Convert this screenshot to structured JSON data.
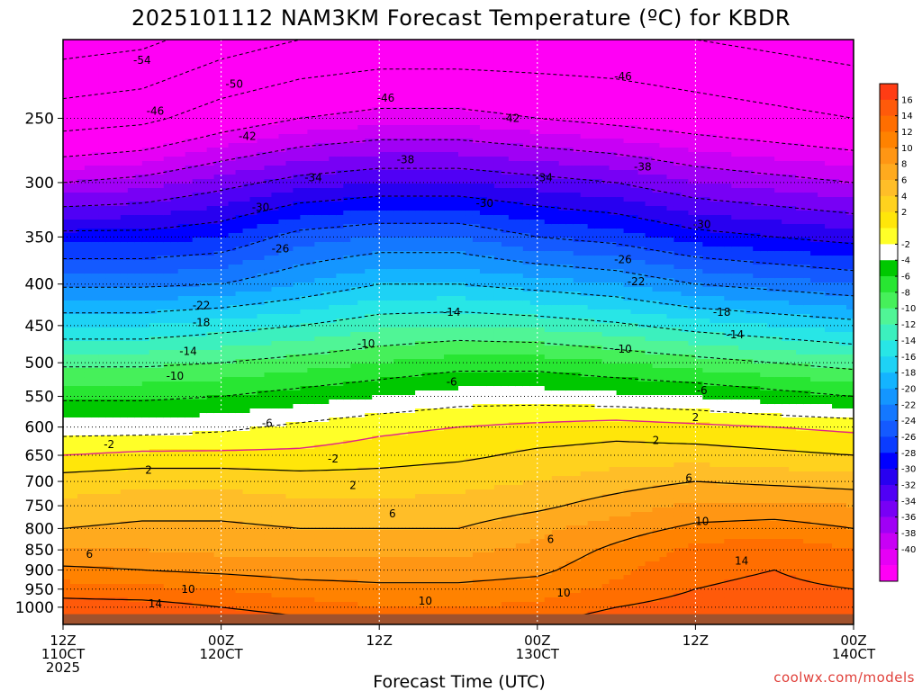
{
  "chart_data": {
    "type": "heatmap",
    "title": "2025101112 NAM3KM Forecast Temperature (ºC) for KBDR",
    "xlabel": "Forecast Time (UTC)",
    "ylabel": "",
    "credit": "coolwx.com/models",
    "y_axis": {
      "scale": "log-pressure",
      "range": [
        1050,
        200
      ],
      "ticks": [
        250,
        300,
        350,
        400,
        450,
        500,
        550,
        600,
        650,
        700,
        750,
        800,
        850,
        900,
        950,
        1000
      ]
    },
    "x_axis": {
      "range_hours": [
        0,
        60
      ],
      "ticks": [
        {
          "hour": 0,
          "lines": [
            "12Z",
            "110CT",
            "2025"
          ]
        },
        {
          "hour": 12,
          "lines": [
            "00Z",
            "120CT"
          ]
        },
        {
          "hour": 24,
          "lines": [
            "12Z"
          ]
        },
        {
          "hour": 36,
          "lines": [
            "00Z",
            "130CT"
          ]
        },
        {
          "hour": 48,
          "lines": [
            "12Z"
          ]
        },
        {
          "hour": 60,
          "lines": [
            "00Z",
            "140CT"
          ]
        }
      ]
    },
    "grid": true,
    "colorbar": {
      "placement": "right",
      "ticks": [
        16,
        14,
        12,
        10,
        8,
        6,
        4,
        2,
        -2,
        -4,
        -6,
        -8,
        -10,
        -12,
        -14,
        -16,
        -18,
        -20,
        -22,
        -24,
        -26,
        -28,
        -30,
        -32,
        -34,
        -36,
        -38,
        -40
      ],
      "colors": [
        "#ff3c14",
        "#ff5a0a",
        "#ff6e00",
        "#ff8200",
        "#ff9614",
        "#ffaa1e",
        "#ffbe28",
        "#ffd21e",
        "#ffe60a",
        "#ffff28",
        "#ffffff",
        "#00c800",
        "#28e632",
        "#46f05a",
        "#50f596",
        "#3cf0be",
        "#28e6e6",
        "#1ed2f5",
        "#14b4ff",
        "#1496ff",
        "#1478ff",
        "#145aff",
        "#0a3cff",
        "#0000ff",
        "#2800f0",
        "#5000f5",
        "#7800f5",
        "#a000f5",
        "#c800f5",
        "#e600f5",
        "#ff00f5"
      ],
      "boundaries": [
        18,
        16,
        14,
        12,
        10,
        8,
        6,
        4,
        2,
        0,
        -2,
        -4,
        -6,
        -8,
        -10,
        -12,
        -14,
        -16,
        -18,
        -20,
        -22,
        -24,
        -26,
        -28,
        -30,
        -32,
        -34,
        -36,
        -38,
        -40,
        -42
      ]
    },
    "profile_pressures": [
      1000,
      950,
      900,
      850,
      800,
      750,
      700,
      650,
      600,
      550,
      500,
      450,
      400,
      350,
      300,
      250,
      200
    ],
    "profiles": [
      {
        "hour": 0,
        "temps": [
          15,
          13,
          10.5,
          8,
          6,
          4.5,
          3,
          0,
          -3,
          -6.5,
          -10.5,
          -16,
          -22.5,
          -29,
          -38,
          -48,
          -56
        ]
      },
      {
        "hour": 6,
        "temps": [
          15,
          12.5,
          10,
          8,
          6.5,
          5,
          3.5,
          0.5,
          -3,
          -6.5,
          -10.5,
          -16,
          -22.5,
          -29,
          -37,
          -47,
          -55
        ]
      },
      {
        "hour": 12,
        "temps": [
          14,
          12,
          9.5,
          7.5,
          6.5,
          5,
          3.5,
          0.5,
          -2.5,
          -6,
          -10,
          -15,
          -22,
          -28,
          -35,
          -44,
          -52
        ]
      },
      {
        "hour": 18,
        "temps": [
          13,
          11,
          9,
          7.5,
          6,
          4.5,
          3,
          0.5,
          -1.5,
          -5,
          -9,
          -14,
          -20,
          -25,
          -33,
          -42,
          -50
        ]
      },
      {
        "hour": 24,
        "temps": [
          12,
          10.5,
          9,
          7.5,
          6,
          4.5,
          3,
          1,
          -0.5,
          -4,
          -8,
          -12.5,
          -18,
          -24,
          -32,
          -41,
          -49
        ]
      },
      {
        "hour": 30,
        "temps": [
          12,
          10.5,
          9,
          7.5,
          6,
          4.5,
          3.5,
          1.5,
          0,
          -3,
          -7,
          -12,
          -18,
          -24,
          -32,
          -41,
          -49
        ]
      },
      {
        "hour": 36,
        "temps": [
          12.5,
          11,
          9.5,
          8.5,
          7.5,
          5.5,
          4,
          2.5,
          0.5,
          -3,
          -7,
          -12.5,
          -19,
          -26,
          -33,
          -42,
          -49
        ]
      },
      {
        "hour": 42,
        "temps": [
          14,
          12.5,
          11.5,
          10.5,
          9,
          7,
          5,
          3,
          1,
          -3.5,
          -8,
          -13.5,
          -20,
          -27,
          -34,
          -43,
          -49
        ]
      },
      {
        "hour": 48,
        "temps": [
          15,
          14,
          13.5,
          12.5,
          10.5,
          8.5,
          6,
          3,
          0.5,
          -4,
          -9,
          -15,
          -22,
          -29,
          -36,
          -44,
          -50
        ]
      },
      {
        "hour": 54,
        "temps": [
          15.5,
          14.5,
          14,
          13.5,
          11,
          8.5,
          5.5,
          2.5,
          0,
          -5,
          -10,
          -16,
          -23,
          -30,
          -37,
          -45,
          -51
        ]
      },
      {
        "hour": 60,
        "temps": [
          15,
          14,
          13,
          12,
          10,
          8,
          5,
          2,
          -0.5,
          -6,
          -11,
          -17,
          -24,
          -31,
          -38,
          -46,
          -52
        ]
      }
    ],
    "contours": {
      "solid_levels": [
        2,
        6,
        10,
        14
      ],
      "dashed_levels": [
        -2,
        -6,
        -10,
        -14,
        -18,
        -22,
        -26,
        -30,
        -34,
        -38,
        -42,
        -46,
        -50,
        -54
      ],
      "freezing_line_color": "#e0208a"
    },
    "contour_labels": [
      {
        "text": "-54",
        "hour": 6,
        "p": 212
      },
      {
        "text": "-50",
        "hour": 13,
        "p": 227
      },
      {
        "text": "-46",
        "hour": 7,
        "p": 245
      },
      {
        "text": "-46",
        "hour": 24.5,
        "p": 236
      },
      {
        "text": "-46",
        "hour": 42.5,
        "p": 222
      },
      {
        "text": "-42",
        "hour": 14,
        "p": 263
      },
      {
        "text": "-42",
        "hour": 34,
        "p": 250
      },
      {
        "text": "-38",
        "hour": 26,
        "p": 281
      },
      {
        "text": "-38",
        "hour": 44,
        "p": 287
      },
      {
        "text": "-34",
        "hour": 19,
        "p": 296
      },
      {
        "text": "-34",
        "hour": 36.5,
        "p": 296
      },
      {
        "text": "-30",
        "hour": 15,
        "p": 322
      },
      {
        "text": "-30",
        "hour": 32,
        "p": 318
      },
      {
        "text": "-30",
        "hour": 48.5,
        "p": 338
      },
      {
        "text": "-26",
        "hour": 16.5,
        "p": 362
      },
      {
        "text": "-26",
        "hour": 42.5,
        "p": 373
      },
      {
        "text": "-22",
        "hour": 10.5,
        "p": 425
      },
      {
        "text": "-22",
        "hour": 43.5,
        "p": 397
      },
      {
        "text": "-18",
        "hour": 10.5,
        "p": 446
      },
      {
        "text": "-18",
        "hour": 50,
        "p": 433
      },
      {
        "text": "-14",
        "hour": 9.5,
        "p": 484
      },
      {
        "text": "-14",
        "hour": 29.5,
        "p": 433
      },
      {
        "text": "-14",
        "hour": 51,
        "p": 462
      },
      {
        "text": "-10",
        "hour": 8.5,
        "p": 519
      },
      {
        "text": "-10",
        "hour": 23,
        "p": 474
      },
      {
        "text": "-10",
        "hour": 42.5,
        "p": 481
      },
      {
        "text": "-6",
        "hour": 15.5,
        "p": 594
      },
      {
        "text": "-6",
        "hour": 29.5,
        "p": 528
      },
      {
        "text": "-6",
        "hour": 48.5,
        "p": 541
      },
      {
        "text": "-2",
        "hour": 3.5,
        "p": 630
      },
      {
        "text": "-2",
        "hour": 20.5,
        "p": 657
      },
      {
        "text": "2",
        "hour": 6.5,
        "p": 678
      },
      {
        "text": "2",
        "hour": 22,
        "p": 708
      },
      {
        "text": "2",
        "hour": 45,
        "p": 623
      },
      {
        "text": "2",
        "hour": 48,
        "p": 584
      },
      {
        "text": "6",
        "hour": 2,
        "p": 860
      },
      {
        "text": "6",
        "hour": 25,
        "p": 767
      },
      {
        "text": "6",
        "hour": 37,
        "p": 825
      },
      {
        "text": "6",
        "hour": 47.5,
        "p": 694
      },
      {
        "text": "10",
        "hour": 9.5,
        "p": 950
      },
      {
        "text": "10",
        "hour": 27.5,
        "p": 983
      },
      {
        "text": "10",
        "hour": 38,
        "p": 960
      },
      {
        "text": "10",
        "hour": 48.5,
        "p": 784
      },
      {
        "text": "14",
        "hour": 7,
        "p": 990
      },
      {
        "text": "14",
        "hour": 51.5,
        "p": 877
      }
    ],
    "terrain_color": "#a0522d"
  }
}
